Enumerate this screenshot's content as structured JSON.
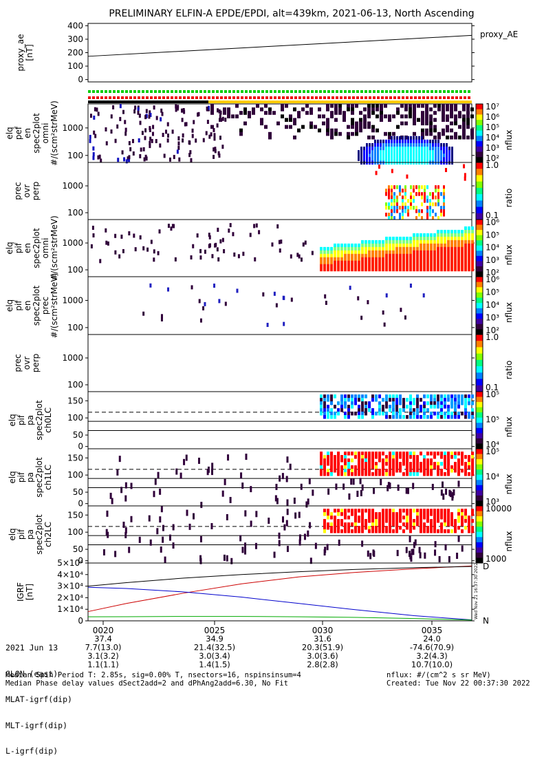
{
  "title": "PRELIMINARY ELFIN-A EPDE/EPDI, alt=439km, 2021-06-13, North Ascending",
  "chart_data": [
    {
      "type": "line",
      "id": "proxy_ae",
      "ylabel": [
        "proxy_ae",
        "[nT]"
      ],
      "legend": "proxy_AE",
      "ylim": [
        0,
        400
      ],
      "yticks": [
        "400",
        "300",
        "200",
        "100",
        "0"
      ],
      "series": [
        {
          "x": [
            0,
            1
          ],
          "y": [
            175,
            318
          ]
        }
      ]
    },
    {
      "type": "heatmap",
      "id": "epde_omni",
      "ylabel": [
        "elq",
        "pef",
        "en",
        "spec2plot",
        "omni",
        "#/(scm²strMeV)"
      ],
      "yscale": "log",
      "yticks": [
        "1000",
        "100"
      ],
      "colorbar": {
        "label": "nflux",
        "ticks": [
          "10⁷",
          "10⁶",
          "10⁵",
          "10⁴",
          "10³",
          "10²"
        ]
      }
    },
    {
      "type": "heatmap",
      "id": "epde_prec_perp",
      "ylabel": [
        "prec",
        "ovr",
        "perp"
      ],
      "yscale": "log",
      "yticks": [
        "1000",
        "100"
      ],
      "colorbar": {
        "label": "ratio",
        "ticks": [
          "1.0",
          "0.1"
        ]
      }
    },
    {
      "type": "heatmap",
      "id": "epdi_omni",
      "ylabel": [
        "elq",
        "pif",
        "en",
        "spec2plot",
        "omni",
        "#/(scm²strMeV)"
      ],
      "yscale": "log",
      "yticks": [
        "1000",
        "100"
      ],
      "colorbar": {
        "label": "nflux",
        "ticks": [
          "10⁶",
          "10⁵",
          "10⁴",
          "10³",
          "10²"
        ]
      }
    },
    {
      "type": "heatmap",
      "id": "epdi_prec",
      "ylabel": [
        "elq",
        "pif",
        "en",
        "spec2plot",
        "prec",
        "#/(scm²strMeV)"
      ],
      "yscale": "log",
      "yticks": [
        "1000",
        "100"
      ],
      "colorbar": {
        "label": "nflux",
        "ticks": [
          "10⁶",
          "10⁵",
          "10⁴",
          "10³",
          "10²"
        ]
      }
    },
    {
      "type": "heatmap",
      "id": "epdi_prec_perp",
      "ylabel": [
        "prec",
        "ovr",
        "perp"
      ],
      "yscale": "log",
      "yticks": [
        "1000",
        "100"
      ],
      "colorbar": {
        "label": "ratio",
        "ticks": [
          "1.0",
          "0.1"
        ]
      }
    },
    {
      "type": "heatmap",
      "id": "pa_ch0",
      "ylabel": [
        "elq",
        "pif",
        "pa",
        "spec2plot",
        "ch0LC"
      ],
      "yticks": [
        "150",
        "100",
        "50",
        "0"
      ],
      "colorbar": {
        "label": "nflux",
        "ticks": [
          "10⁵",
          "10⁵",
          "10⁴"
        ]
      }
    },
    {
      "type": "heatmap",
      "id": "pa_ch1",
      "ylabel": [
        "elq",
        "pif",
        "pa",
        "spec2plot",
        "ch1LC"
      ],
      "yticks": [
        "150",
        "100",
        "50",
        "0"
      ],
      "colorbar": {
        "label": "nflux",
        "ticks": [
          "10⁵",
          "10⁴",
          "10³"
        ]
      }
    },
    {
      "type": "heatmap",
      "id": "pa_ch2",
      "ylabel": [
        "elq",
        "pif",
        "pa",
        "spec2plot",
        "ch2LC"
      ],
      "yticks": [
        "150",
        "100",
        "50",
        "0"
      ],
      "colorbar": {
        "label": "nflux",
        "ticks": [
          "10000",
          "1000"
        ]
      }
    },
    {
      "type": "line",
      "id": "igrf",
      "ylabel": [
        "IGRF",
        "[nT]"
      ],
      "ylim": [
        0,
        50000
      ],
      "yticks": [
        "5×10⁴",
        "4×10⁴",
        "3×10⁴",
        "2×10⁴",
        "1×10⁴",
        "0"
      ],
      "series": [
        {
          "name": "D",
          "color": "#cc0000",
          "x": [
            0,
            0.1,
            0.25,
            0.4,
            0.55,
            0.7,
            0.85,
            1
          ],
          "y": [
            8000,
            15000,
            24000,
            32000,
            38000,
            42000,
            45000,
            47500
          ]
        },
        {
          "name": "",
          "color": "#000000",
          "x": [
            0,
            0.1,
            0.25,
            0.4,
            0.55,
            0.7,
            0.85,
            1
          ],
          "y": [
            30000,
            33000,
            37000,
            40000,
            42500,
            44500,
            46000,
            47000
          ]
        },
        {
          "name": "",
          "color": "#0000cc",
          "x": [
            0,
            0.1,
            0.25,
            0.4,
            0.55,
            0.7,
            0.85,
            1
          ],
          "y": [
            29000,
            28000,
            25000,
            20500,
            15000,
            9500,
            4500,
            800
          ]
        },
        {
          "name": "N",
          "color": "#00aa00",
          "x": [
            0,
            0.1,
            0.25,
            0.4,
            0.55,
            0.7,
            0.85,
            1
          ],
          "y": [
            3500,
            3600,
            3800,
            3800,
            3500,
            3000,
            2000,
            700
          ]
        }
      ]
    }
  ],
  "xaxis": {
    "labels": [
      "0020",
      "0025",
      "0030",
      "0035"
    ],
    "rows": [
      {
        "name": "2021 Jun 13",
        "values": [
          "",
          "",
          "",
          ""
        ]
      },
      {
        "name": "GLON (east)",
        "values": [
          "37.4",
          "34.9",
          "31.6",
          "24.0"
        ]
      },
      {
        "name": "MLAT-igrf(dip)",
        "values": [
          "7.7(13.0)",
          "21.4(32.5)",
          "20.3(51.9)",
          "-74.6(70.9)"
        ]
      },
      {
        "name": "MLT-igrf(dip)",
        "values": [
          "3.1(3.2)",
          "3.0(3.4)",
          "3.0(3.6)",
          "3.2(4.3)"
        ]
      },
      {
        "name": "L-igrf(dip)",
        "values": [
          "1.1(1.1)",
          "1.4(1.5)",
          "2.8(2.8)",
          "10.7(10.0)"
        ]
      }
    ]
  },
  "footer": {
    "left1": "Median Spin Period T: 2.85s, sig=0.00% T, nsectors=16, nspinsinsum=4",
    "left2": "Median Phase delay values dSect2add=2 and dPhAng2add=6.30, No Fit",
    "right1": "nflux: #/(cm^2 s sr MeV)",
    "right2": "Created: Tue Nov 22 00:37:30 2022",
    "side_stamp": "Wed Nov 21 16:37:30 2022"
  }
}
